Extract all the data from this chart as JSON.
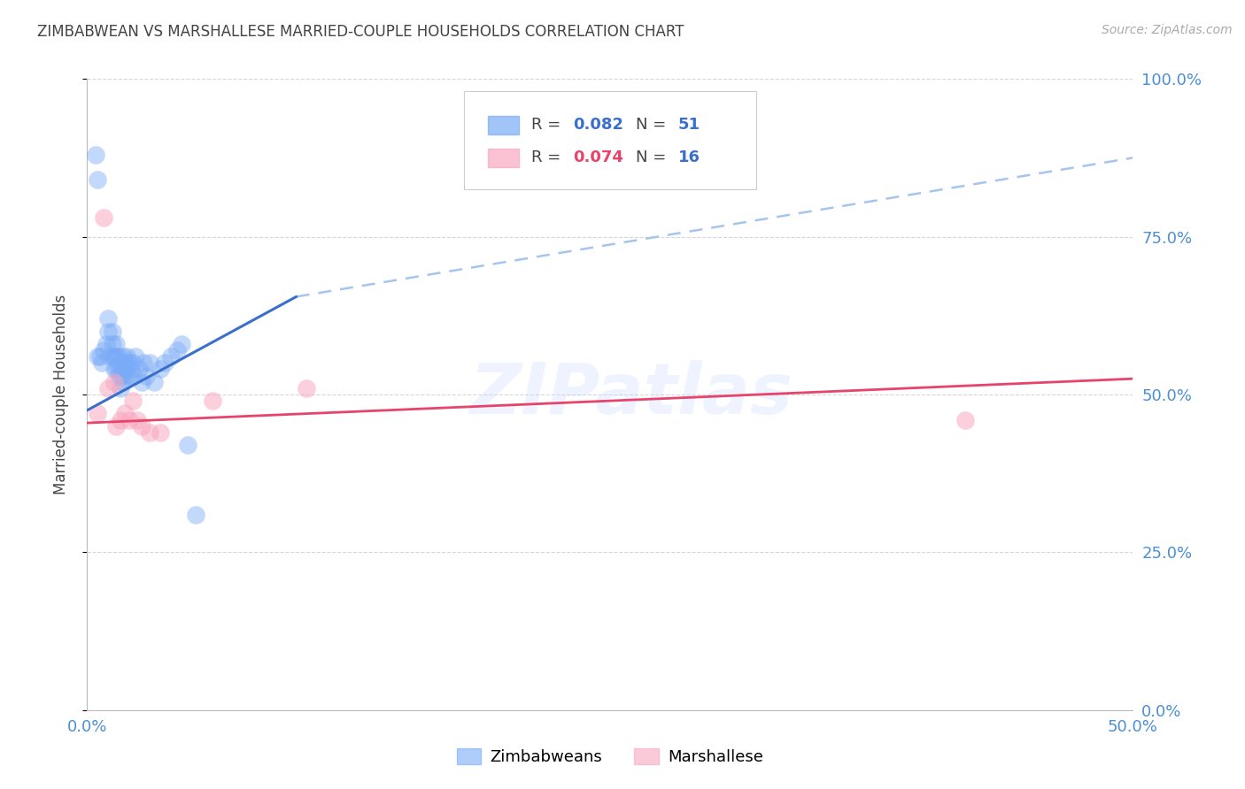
{
  "title": "ZIMBABWEAN VS MARSHALLESE MARRIED-COUPLE HOUSEHOLDS CORRELATION CHART",
  "source": "Source: ZipAtlas.com",
  "ylabel": "Married-couple Households",
  "xlim": [
    0.0,
    0.5
  ],
  "ylim": [
    0.0,
    1.0
  ],
  "yticks": [
    0.0,
    0.25,
    0.5,
    0.75,
    1.0
  ],
  "ytick_labels": [
    "0.0%",
    "25.0%",
    "50.0%",
    "75.0%",
    "100.0%"
  ],
  "xticks": [
    0.0,
    0.1,
    0.2,
    0.3,
    0.4,
    0.5
  ],
  "xtick_labels": [
    "0.0%",
    "",
    "",
    "",
    "",
    "50.0%"
  ],
  "blue_color": "#7AABF7",
  "pink_color": "#F9A8C0",
  "blue_line_color": "#3B6FCC",
  "pink_line_color": "#E8436A",
  "dash_line_color": "#9BBFEE",
  "axis_color": "#4B8FD5",
  "title_color": "#444444",
  "grid_color": "#CCCCCC",
  "watermark": "ZIPatlas",
  "legend_r1_color": "#3B6FCC",
  "legend_n1_color": "#3B6FCC",
  "legend_r2_color": "#E8436A",
  "legend_n2_color": "#3B6FCC",
  "zimbabwean_x": [
    0.004,
    0.005,
    0.005,
    0.006,
    0.007,
    0.008,
    0.009,
    0.01,
    0.01,
    0.011,
    0.012,
    0.012,
    0.013,
    0.013,
    0.013,
    0.014,
    0.014,
    0.014,
    0.015,
    0.015,
    0.015,
    0.015,
    0.016,
    0.016,
    0.016,
    0.017,
    0.017,
    0.017,
    0.018,
    0.018,
    0.019,
    0.019,
    0.02,
    0.02,
    0.021,
    0.022,
    0.022,
    0.023,
    0.025,
    0.026,
    0.027,
    0.028,
    0.03,
    0.032,
    0.035,
    0.037,
    0.04,
    0.043,
    0.045,
    0.048,
    0.052
  ],
  "zimbabwean_y": [
    0.88,
    0.84,
    0.56,
    0.56,
    0.55,
    0.57,
    0.58,
    0.6,
    0.62,
    0.56,
    0.58,
    0.6,
    0.56,
    0.54,
    0.56,
    0.58,
    0.56,
    0.54,
    0.56,
    0.55,
    0.54,
    0.53,
    0.55,
    0.53,
    0.51,
    0.56,
    0.54,
    0.52,
    0.55,
    0.53,
    0.56,
    0.54,
    0.55,
    0.53,
    0.54,
    0.55,
    0.53,
    0.56,
    0.54,
    0.52,
    0.55,
    0.53,
    0.55,
    0.52,
    0.54,
    0.55,
    0.56,
    0.57,
    0.58,
    0.42,
    0.31
  ],
  "marshallese_x": [
    0.005,
    0.01,
    0.013,
    0.016,
    0.018,
    0.02,
    0.022,
    0.024,
    0.026,
    0.03,
    0.035,
    0.06,
    0.105,
    0.42,
    0.008,
    0.014
  ],
  "marshallese_y": [
    0.47,
    0.51,
    0.52,
    0.46,
    0.47,
    0.46,
    0.49,
    0.46,
    0.45,
    0.44,
    0.44,
    0.49,
    0.51,
    0.46,
    0.78,
    0.45
  ],
  "blue_line_x0": 0.0,
  "blue_line_x1": 0.1,
  "blue_line_y0": 0.475,
  "blue_line_y1": 0.655,
  "pink_line_x0": 0.0,
  "pink_line_x1": 0.5,
  "pink_line_y0": 0.455,
  "pink_line_y1": 0.525,
  "dash_line_x0": 0.1,
  "dash_line_x1": 0.5,
  "dash_line_y0": 0.655,
  "dash_line_y1": 0.875
}
